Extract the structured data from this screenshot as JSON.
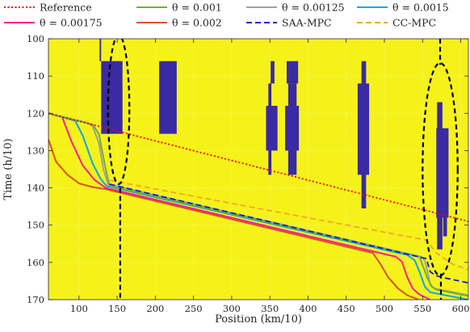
{
  "chart_data": {
    "type": "line",
    "xlabel": "Position (km/10)",
    "ylabel": "Time (h/10)",
    "xlim": [
      60,
      610
    ],
    "ylim": [
      100,
      170
    ],
    "y_reversed": true,
    "x_ticks": [
      "100",
      "150",
      "200",
      "250",
      "300",
      "350",
      "400",
      "450",
      "500",
      "550",
      "600"
    ],
    "y_ticks": [
      "100",
      "110",
      "120",
      "130",
      "140",
      "150",
      "160",
      "170"
    ],
    "grid": true,
    "background": "#f5f21a",
    "obstacle_color": "#3a2aa3",
    "legend": {
      "placement": "top",
      "entries": [
        "Reference",
        "θ = 0.001",
        "θ = 0.00125",
        "θ = 0.0015",
        "θ = 0.00175",
        "θ = 0.002",
        "SAA-MPC",
        "CC-MPC"
      ]
    },
    "series": [
      {
        "name": "Reference",
        "color": "#ff0000",
        "style": "dotted",
        "x": [
          60,
          610
        ],
        "y": [
          120.0,
          149.0
        ]
      },
      {
        "name": "θ = 0.001",
        "color": "#77ac30",
        "style": "solid",
        "x": [
          60,
          118,
          126,
          134,
          140,
          546,
          556,
          562,
          568,
          610
        ],
        "y": [
          120.0,
          123.0,
          125.5,
          134.0,
          139.5,
          158.5,
          164.0,
          166.5,
          167.3,
          169.0
        ]
      },
      {
        "name": "θ = 0.00125",
        "color": "#a0a0a0",
        "style": "solid",
        "x": [
          60,
          110,
          118,
          126,
          132,
          138,
          548,
          553,
          557,
          560,
          566,
          610
        ],
        "y": [
          120.0,
          122.5,
          123.5,
          128.0,
          135.0,
          139.0,
          158.5,
          159.5,
          163.0,
          166.0,
          167.0,
          168.8
        ]
      },
      {
        "name": "θ = 0.0015",
        "color": "#00a8ec",
        "style": "solid",
        "x": [
          60,
          95,
          105,
          118,
          128,
          136,
          530,
          540,
          547,
          553,
          560,
          610
        ],
        "y": [
          120.0,
          122.0,
          126.0,
          133.5,
          137.5,
          139.5,
          158.0,
          159.5,
          163.0,
          166.5,
          168.0,
          170.0
        ]
      },
      {
        "name": "θ = 0.00175",
        "color": "#ff1c94",
        "style": "solid",
        "x": [
          60,
          78,
          90,
          105,
          120,
          135,
          515,
          523,
          530,
          537,
          545,
          560
        ],
        "y": [
          120.0,
          121.0,
          127.5,
          134.0,
          137.8,
          140.0,
          158.5,
          159.8,
          164.0,
          167.0,
          168.5,
          170.0
        ]
      },
      {
        "name": "θ = 0.002",
        "color": "#d95319",
        "style": "solid",
        "x": [
          60,
          70,
          85,
          100,
          118,
          134,
          485,
          495,
          505,
          518,
          530,
          545
        ],
        "y": [
          127.0,
          133.0,
          136.5,
          138.8,
          139.8,
          140.3,
          157.5,
          160.5,
          164.0,
          167.0,
          168.8,
          170.0
        ]
      },
      {
        "name": "SAA-MPC",
        "color": "#0b1fdc",
        "style": "dashed",
        "x": [
          140,
          555,
          560,
          567,
          575,
          610
        ],
        "y": [
          139.0,
          159.0,
          162.5,
          163.5,
          164.0,
          165.5
        ]
      },
      {
        "name": "CC-MPC",
        "color": "#f5a623",
        "style": "dashed",
        "x": [
          140,
          555,
          568,
          590,
          610
        ],
        "y": [
          138.0,
          154.0,
          157.5,
          160.5,
          162.0
        ]
      }
    ],
    "obstacles": [
      {
        "x": [
          127,
          129
        ],
        "y": [
          100,
          106
        ]
      },
      {
        "x": [
          129,
          157
        ],
        "y": [
          106,
          125.5
        ]
      },
      {
        "x": [
          205,
          228
        ],
        "y": [
          106,
          125.5
        ]
      },
      {
        "x": [
          351,
          356
        ],
        "y": [
          106,
          112
        ]
      },
      {
        "x": [
          348,
          352
        ],
        "y": [
          112,
          136.5
        ]
      },
      {
        "x": [
          345,
          360
        ],
        "y": [
          118,
          130
        ]
      },
      {
        "x": [
          372,
          387
        ],
        "y": [
          106,
          112
        ]
      },
      {
        "x": [
          374,
          385
        ],
        "y": [
          112,
          136.5
        ]
      },
      {
        "x": [
          370,
          388
        ],
        "y": [
          118,
          130
        ]
      },
      {
        "x": [
          470,
          476
        ],
        "y": [
          106,
          145.5
        ]
      },
      {
        "x": [
          465,
          480
        ],
        "y": [
          112,
          136.5
        ]
      },
      {
        "x": [
          569,
          576
        ],
        "y": [
          117,
          156.5
        ]
      },
      {
        "x": [
          568,
          584
        ],
        "y": [
          124,
          148
        ]
      },
      {
        "x": [
          577,
          582
        ],
        "y": [
          148,
          153
        ]
      }
    ],
    "ellipses": [
      {
        "center": [
          152,
          119
        ],
        "radius": [
          14,
          20
        ]
      },
      {
        "center": [
          573,
          135
        ],
        "radius": [
          23,
          28.5
        ]
      }
    ],
    "ellipse_lines": [
      {
        "x": [
          154,
          154
        ],
        "y": [
          140,
          170
        ]
      },
      {
        "x": [
          573,
          573
        ],
        "y": [
          100,
          107
        ]
      },
      {
        "x": [
          574,
          574
        ],
        "y": [
          163,
          170
        ]
      }
    ]
  }
}
